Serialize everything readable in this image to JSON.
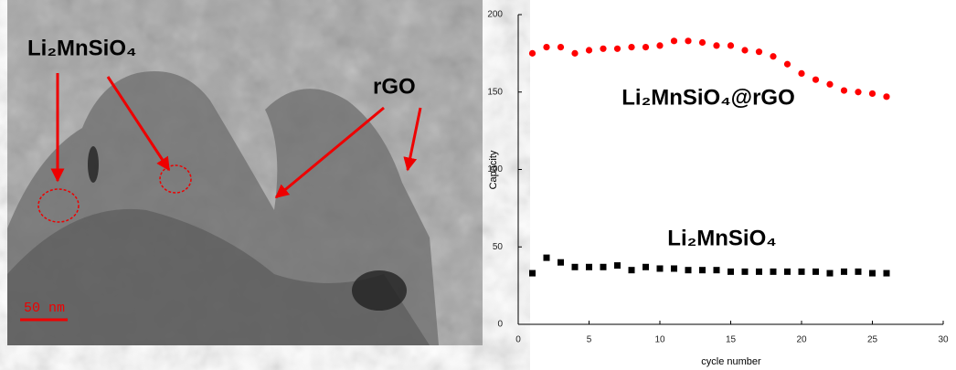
{
  "image": {
    "labels": [
      "Li₂MnSiO₄",
      "rGO"
    ],
    "scale_bar": "50 nm"
  },
  "chart_data": {
    "type": "scatter",
    "xlabel": "cycle number",
    "ylabel": "Capacity",
    "x": [
      1,
      2,
      3,
      4,
      5,
      6,
      7,
      8,
      9,
      10,
      11,
      12,
      13,
      14,
      15,
      16,
      17,
      18,
      19,
      20,
      21,
      22,
      23,
      24,
      25,
      26
    ],
    "series": [
      {
        "name": "Li₂MnSiO₄@rGO",
        "color": "#ff0000",
        "marker": "circle",
        "values": [
          175,
          179,
          179,
          175,
          177,
          178,
          178,
          179,
          179,
          180,
          183,
          183,
          182,
          180,
          180,
          177,
          176,
          173,
          168,
          162,
          158,
          155,
          151,
          150,
          149,
          147
        ]
      },
      {
        "name": "Li₂MnSiO₄",
        "color": "#000000",
        "marker": "square",
        "values": [
          33,
          43,
          40,
          37,
          37,
          37,
          38,
          35,
          37,
          36,
          36,
          35,
          35,
          35,
          34,
          34,
          34,
          34,
          34,
          34,
          34,
          33,
          34,
          34,
          33,
          33
        ]
      }
    ],
    "xlim": [
      0,
      30
    ],
    "xticks": [
      0,
      5,
      10,
      15,
      20,
      25,
      30
    ],
    "ylim": [
      0,
      200
    ],
    "yticks": [
      0,
      50,
      100,
      150,
      200
    ]
  }
}
